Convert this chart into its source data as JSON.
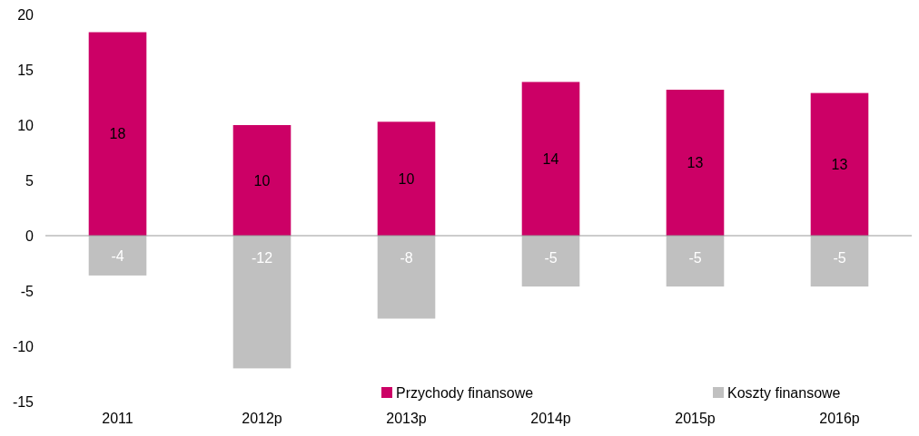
{
  "chart_data": {
    "type": "bar",
    "stacked": true,
    "categories": [
      "2011",
      "2012p",
      "2013p",
      "2014p",
      "2015p",
      "2016p"
    ],
    "series": [
      {
        "name": "Przychody finansowe",
        "color": "#cc0066",
        "values": [
          18.4,
          10.0,
          10.3,
          13.9,
          13.2,
          12.9
        ],
        "value_labels": [
          "18",
          "10",
          "10",
          "14",
          "13",
          "13"
        ]
      },
      {
        "name": "Koszty finansowe",
        "color": "#c0c0c0",
        "values": [
          -3.6,
          -12.0,
          -7.5,
          -4.6,
          -4.6,
          -4.6
        ],
        "value_labels": [
          "-4",
          "-12",
          "-8",
          "-5",
          "-5",
          "-5"
        ]
      }
    ],
    "ylim": [
      -15,
      20
    ],
    "yticks": [
      -15,
      -10,
      -5,
      0,
      5,
      10,
      15,
      20
    ],
    "legend": "bottom right"
  }
}
